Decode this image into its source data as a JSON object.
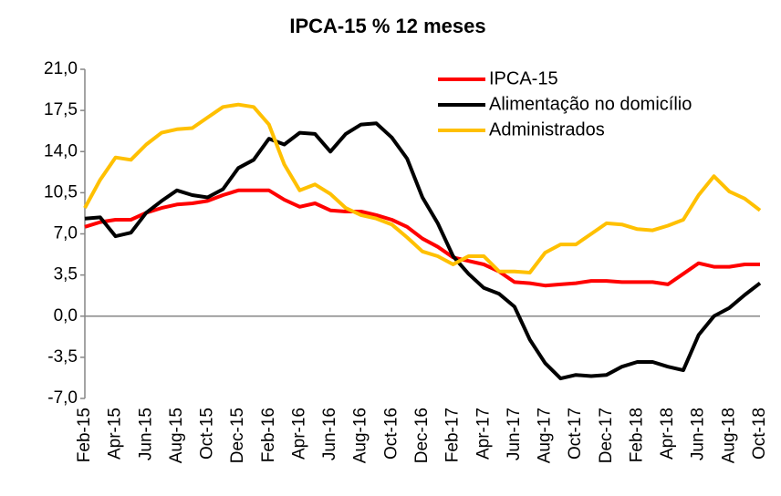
{
  "chart_data": {
    "type": "line",
    "title": "IPCA-15 % 12 meses",
    "categories": [
      "Feb-15",
      null,
      "Apr-15",
      null,
      "Jun-15",
      null,
      "Aug-15",
      null,
      "Oct-15",
      null,
      "Dec-15",
      null,
      "Feb-16",
      null,
      "Apr-16",
      null,
      "Jun-16",
      null,
      "Aug-16",
      null,
      "Oct-16",
      null,
      "Dec-16",
      null,
      "Feb-17",
      null,
      "Apr-17",
      null,
      "Jun-17",
      null,
      "Aug-17",
      null,
      "Oct-17",
      null,
      "Dec-17",
      null,
      "Feb-18",
      null,
      "Apr-18",
      null,
      "Jun-18",
      null,
      "Aug-18",
      null,
      "Oct-18"
    ],
    "series": [
      {
        "name": "IPCA-15",
        "color": "#ff0000",
        "values": [
          7.6,
          8.0,
          8.2,
          8.2,
          8.8,
          9.2,
          9.5,
          9.6,
          9.8,
          10.3,
          10.7,
          10.7,
          10.7,
          9.9,
          9.3,
          9.6,
          9.0,
          8.9,
          8.9,
          8.6,
          8.2,
          7.6,
          6.6,
          5.9,
          5.0,
          4.7,
          4.4,
          3.8,
          2.9,
          2.8,
          2.6,
          2.7,
          2.8,
          3.0,
          3.0,
          2.9,
          2.9,
          2.9,
          2.7,
          3.6,
          4.5,
          4.2,
          4.2,
          4.4,
          4.4
        ]
      },
      {
        "name": "Alimentação no domicílio",
        "color": "#000000",
        "values": [
          8.3,
          8.4,
          6.8,
          7.1,
          8.8,
          9.8,
          10.7,
          10.3,
          10.1,
          10.8,
          12.6,
          13.3,
          15.1,
          14.6,
          15.6,
          15.5,
          14.0,
          15.5,
          16.3,
          16.4,
          15.2,
          13.4,
          10.1,
          7.9,
          5.1,
          3.6,
          2.4,
          1.9,
          0.8,
          -2.0,
          -4.0,
          -5.3,
          -5.0,
          -5.1,
          -5.0,
          -4.3,
          -3.9,
          -3.9,
          -4.3,
          -4.6,
          -1.6,
          0.0,
          0.7,
          1.8,
          2.8
        ]
      },
      {
        "name": "Administrados",
        "color": "#ffc000",
        "values": [
          9.2,
          11.6,
          13.5,
          13.3,
          14.6,
          15.6,
          15.9,
          16.0,
          16.9,
          17.8,
          18.0,
          17.8,
          16.3,
          12.9,
          10.7,
          11.2,
          10.4,
          9.2,
          8.6,
          8.3,
          7.8,
          6.7,
          5.5,
          5.1,
          4.4,
          5.1,
          5.1,
          3.8,
          3.8,
          3.7,
          5.4,
          6.1,
          6.1,
          7.0,
          7.9,
          7.8,
          7.4,
          7.3,
          7.7,
          8.2,
          10.3,
          11.9,
          10.6,
          10.0,
          9.0
        ]
      }
    ],
    "ylim": [
      -7,
      21
    ],
    "yticks": [
      {
        "value": -7,
        "label": "-7,0"
      },
      {
        "value": -3.5,
        "label": "-3,5"
      },
      {
        "value": 0,
        "label": "0,0"
      },
      {
        "value": 3.5,
        "label": "3,5"
      },
      {
        "value": 7,
        "label": "7,0"
      },
      {
        "value": 10.5,
        "label": "10,5"
      },
      {
        "value": 14,
        "label": "14,0"
      },
      {
        "value": 17.5,
        "label": "17,5"
      },
      {
        "value": 21,
        "label": "21,0"
      }
    ],
    "legend": "upper right"
  }
}
